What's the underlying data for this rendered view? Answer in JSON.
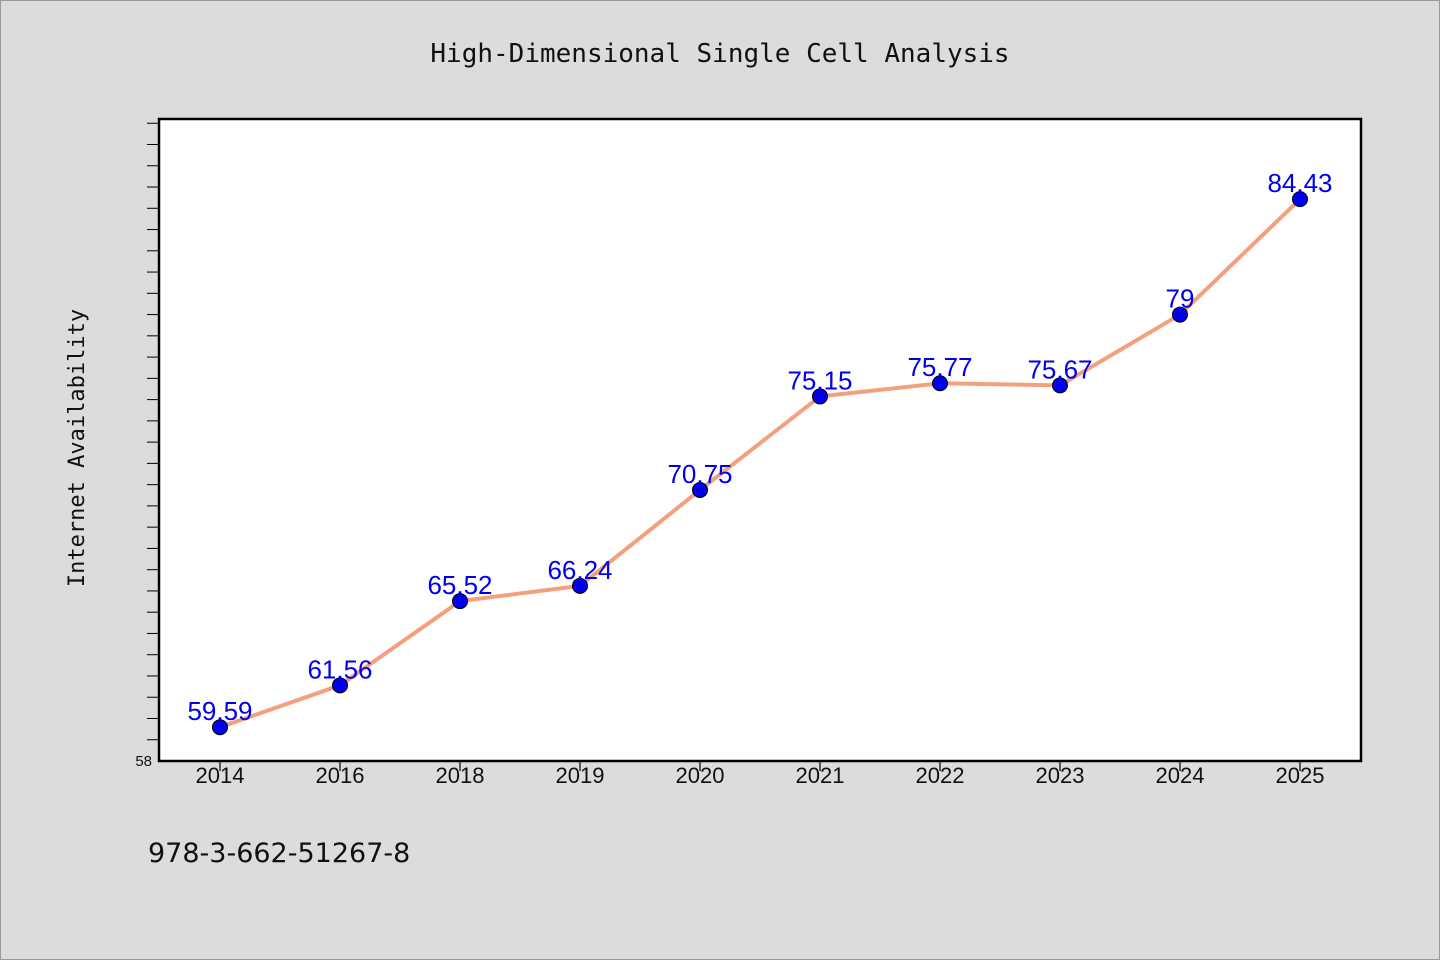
{
  "chart_data": {
    "type": "line",
    "title": "High-Dimensional Single Cell Analysis",
    "ylabel": "Internet Availability",
    "xlabel": "",
    "categories": [
      "2014",
      "2016",
      "2018",
      "2019",
      "2020",
      "2021",
      "2022",
      "2023",
      "2024",
      "2025"
    ],
    "series": [
      {
        "values": [
          59.59,
          61.56,
          65.52,
          66.24,
          70.75,
          75.15,
          75.77,
          75.67,
          79,
          84.43
        ],
        "data_labels": [
          "59.59",
          "61.56",
          "65.52",
          "66.24",
          "70.75",
          "75.15",
          "75.77",
          "75.67",
          "79",
          "84.43"
        ]
      }
    ],
    "ylim": [
      58,
      88.2
    ],
    "ytick_labels": [
      "58"
    ],
    "grid": false,
    "line_color": "#f4a07e",
    "marker_color": "#0000ee",
    "label_color": "#0000ee"
  },
  "footer": {
    "isbn": "978-3-662-51267-8"
  }
}
